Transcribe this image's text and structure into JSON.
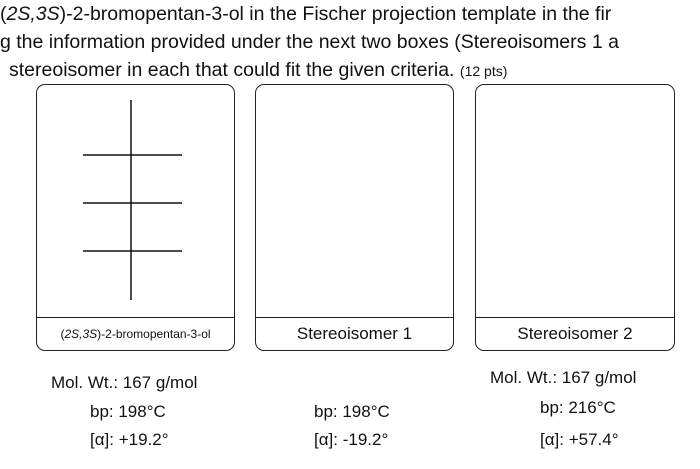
{
  "question": {
    "line1_pre": "(",
    "line1_em1": "2S,3S",
    "line1_post": ")-2-bromopentan-3-ol in the Fischer projection template in the fir",
    "line2": "g the information provided under the next two boxes (Stereoisomers 1 a",
    "line3": " stereoisomer in each that could fit the given criteria.",
    "points": "(12 pts)"
  },
  "boxes": [
    {
      "caption_pre": "(",
      "caption_em": "2S,3S",
      "caption_post": ")-2-bromopentan-3-ol",
      "mol_wt": "Mol. Wt.: 167 g/mol",
      "bp": "bp:  198°C",
      "rotation": "[α]: +19.2°"
    },
    {
      "caption": "Stereoisomer 1",
      "bp": "bp:  198°C",
      "rotation": "[α]: -19.2°"
    },
    {
      "caption": "Stereoisomer 2",
      "mol_wt": "Mol. Wt.: 167 g/mol",
      "bp": "bp:  216°C",
      "rotation": "[α]: +57.4°"
    }
  ]
}
